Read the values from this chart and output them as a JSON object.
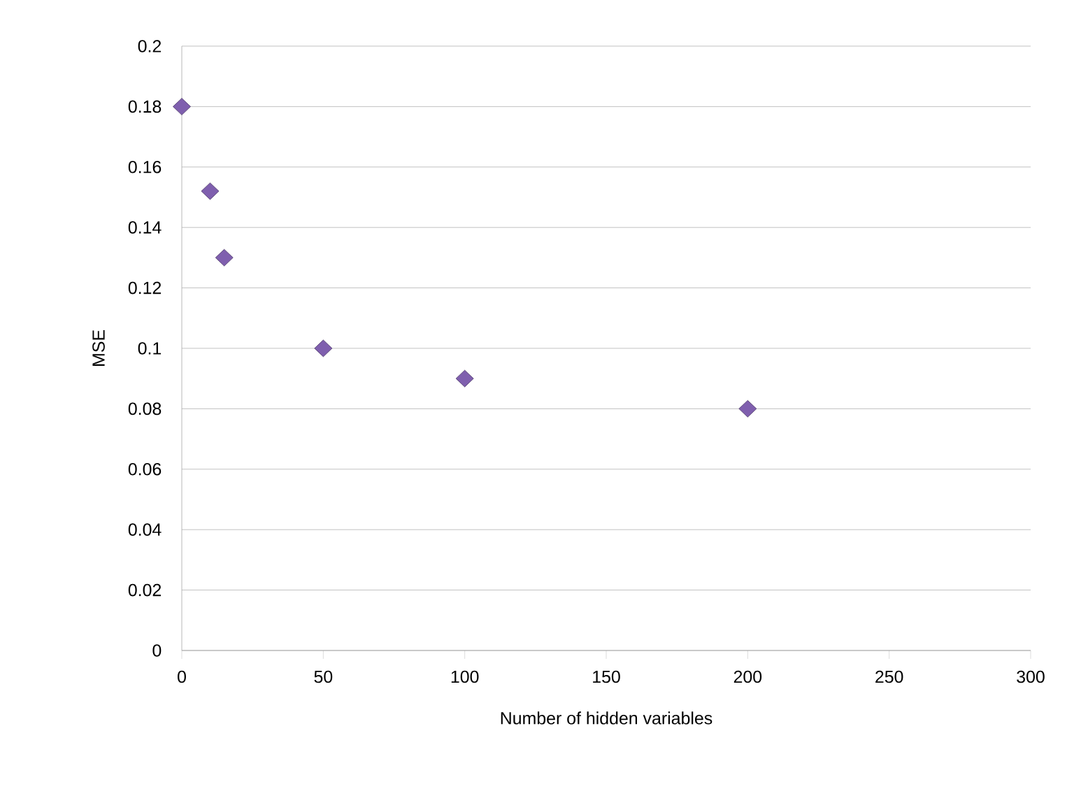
{
  "chart_data": {
    "type": "scatter",
    "xlabel": "Number of hidden variables",
    "ylabel": "MSE",
    "x": [
      0,
      10,
      15,
      50,
      100,
      200
    ],
    "series": [
      {
        "color": "#7f5fae",
        "values": [
          0.18,
          0.152,
          0.13,
          0.1,
          0.09,
          0.08
        ]
      }
    ],
    "marker": "diamond",
    "xlim": [
      0,
      300
    ],
    "xticks": [
      0,
      50,
      100,
      150,
      200,
      250,
      300
    ],
    "ylim": [
      0,
      0.2
    ],
    "yticks": [
      0,
      0.02,
      0.04,
      0.06,
      0.08,
      0.1,
      0.12,
      0.14,
      0.16,
      0.18,
      0.2
    ],
    "grid": "y"
  }
}
